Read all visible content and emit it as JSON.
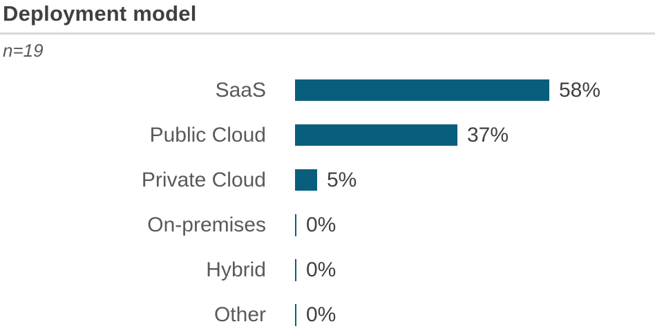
{
  "header": {
    "title": "Deployment model",
    "sample_size": "n=19"
  },
  "colors": {
    "bar": "#0a5e7d",
    "title_text": "#404040",
    "category_text": "#595959",
    "value_text": "#404040",
    "divider": "#d9d9d9",
    "background": "#ffffff"
  },
  "chart_data": {
    "type": "bar",
    "orientation": "horizontal",
    "title": "Deployment model",
    "subtitle": "n=19",
    "categories": [
      "SaaS",
      "Public Cloud",
      "Private Cloud",
      "On-premises",
      "Hybrid",
      "Other"
    ],
    "values": [
      58,
      37,
      5,
      0,
      0,
      0
    ],
    "value_labels": [
      "58%",
      "37%",
      "5%",
      "0%",
      "0%",
      "0%"
    ],
    "unit": "%",
    "xlim": [
      0,
      100
    ],
    "grid": false,
    "legend": false,
    "bar_color": "#0a5e7d",
    "value_label_position": "end-of-bar"
  }
}
